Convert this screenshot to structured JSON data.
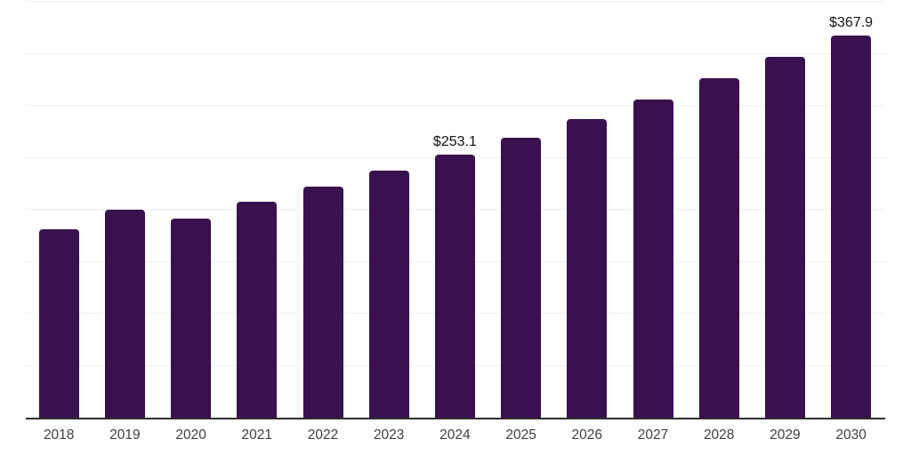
{
  "chart_data": {
    "type": "bar",
    "title": "",
    "xlabel": "",
    "ylabel": "",
    "categories": [
      "2018",
      "2019",
      "2020",
      "2021",
      "2022",
      "2023",
      "2024",
      "2025",
      "2026",
      "2027",
      "2028",
      "2029",
      "2030"
    ],
    "values": [
      181.4,
      200.4,
      191.3,
      207.3,
      222.1,
      237.4,
      253.1,
      269.1,
      287.3,
      306.3,
      326.3,
      347.3,
      367.9
    ],
    "bar_labels": {
      "2024": "$253.1",
      "2030": "$367.9"
    },
    "ylim": [
      0,
      400
    ],
    "gridline_values": [
      50,
      100,
      150,
      200,
      250,
      300,
      350,
      400
    ],
    "grid": "horizontal-only",
    "legend": "none",
    "colors": {
      "bar": "#38114E",
      "gridline": "#efefef",
      "axis": "#2e2e2e",
      "tick_label": "#3f3f3f",
      "value_label": "#121212",
      "background": "#ffffff"
    }
  }
}
